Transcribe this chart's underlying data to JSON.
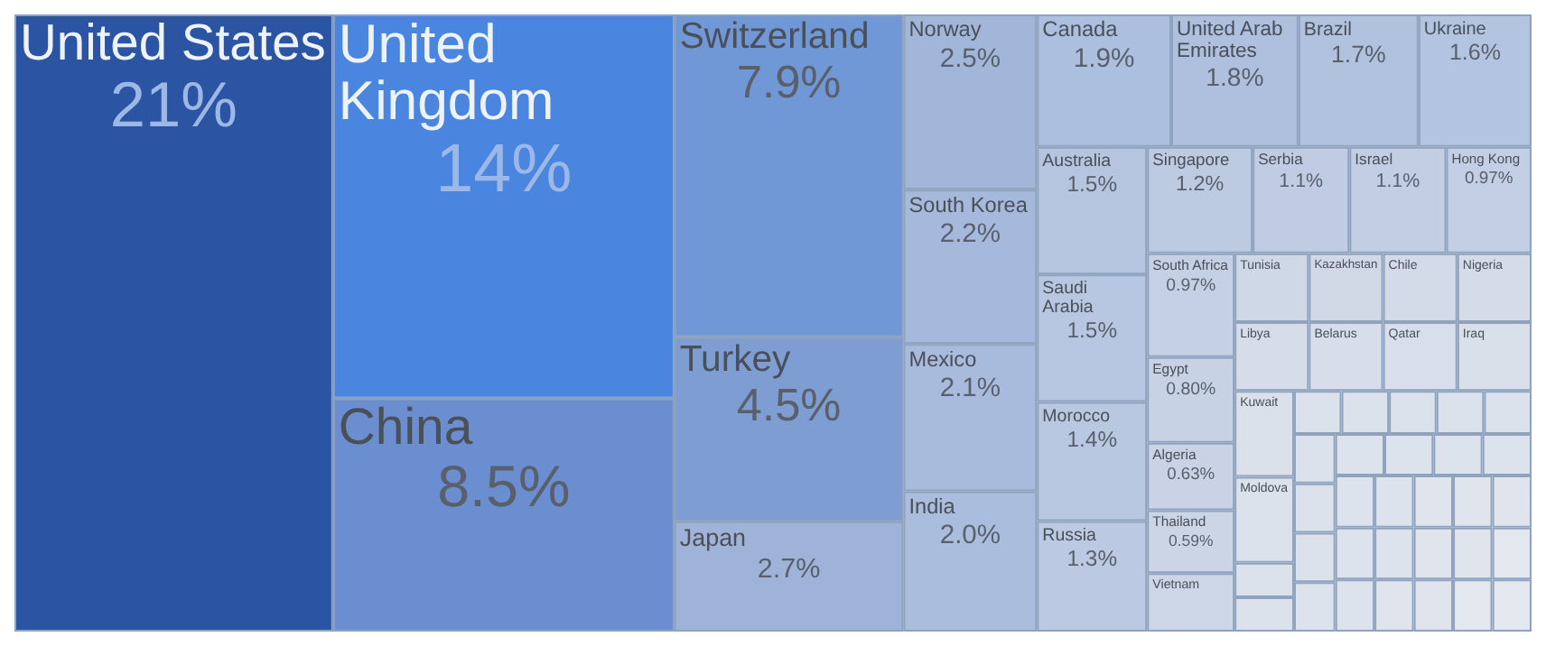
{
  "chart_data": {
    "type": "other",
    "categories": [
      "United States",
      "United Kingdom",
      "China",
      "Switzerland",
      "Turkey",
      "Japan",
      "Norway",
      "South Korea",
      "Mexico",
      "India",
      "Canada",
      "United Arab Emirates",
      "Brazil",
      "Ukraine",
      "Australia",
      "Saudi Arabia",
      "Morocco",
      "Russia",
      "Singapore",
      "Serbia",
      "Israel",
      "Hong Kong",
      "South Africa",
      "Egypt",
      "Algeria",
      "Thailand",
      "Vietnam",
      "Tunisia",
      "Kazakhstan",
      "Chile",
      "Nigeria",
      "Libya",
      "Belarus",
      "Qatar",
      "Iraq",
      "Kuwait",
      "Moldova",
      null,
      null,
      null,
      null,
      null,
      null,
      null,
      null,
      null,
      null,
      null,
      null,
      null,
      null,
      null,
      null,
      null,
      null,
      null,
      null,
      null,
      null,
      null,
      null,
      null,
      null,
      null,
      null,
      null,
      null
    ],
    "values": [
      21,
      14,
      8.5,
      7.9,
      4.5,
      2.7,
      2.5,
      2.2,
      2.1,
      2.0,
      1.9,
      1.8,
      1.7,
      1.6,
      1.5,
      1.5,
      1.4,
      1.3,
      1.2,
      1.1,
      1.1,
      0.97,
      0.97,
      0.8,
      0.63,
      0.59,
      null,
      null,
      null,
      null,
      null,
      null,
      null,
      null,
      null,
      null,
      null,
      null,
      null,
      null,
      null,
      null,
      null,
      null,
      null,
      null,
      null,
      null,
      null,
      null,
      null,
      null,
      null,
      null,
      null,
      null,
      null,
      null,
      null,
      null,
      null,
      null,
      null,
      null,
      null,
      null,
      null
    ],
    "value_labels": [
      "21%",
      "14%",
      "8.5%",
      "7.9%",
      "4.5%",
      "2.7%",
      "2.5%",
      "2.2%",
      "2.1%",
      "2.0%",
      "1.9%",
      "1.8%",
      "1.7%",
      "1.6%",
      "1.5%",
      "1.5%",
      "1.4%",
      "1.3%",
      "1.2%",
      "1.1%",
      "1.1%",
      "0.97%",
      "0.97%",
      "0.80%",
      "0.63%",
      "0.59%",
      null,
      null,
      null,
      null,
      null,
      null,
      null,
      null,
      null,
      null,
      null,
      null,
      null,
      null,
      null,
      null,
      null,
      null,
      null,
      null,
      null,
      null,
      null,
      null,
      null,
      null,
      null,
      null,
      null,
      null,
      null,
      null,
      null,
      null,
      null,
      null,
      null,
      null,
      null,
      null,
      null
    ],
    "colors": [
      "#2b54a3",
      "#4a86e0",
      "#6a8ecf",
      "#7098d6",
      "#7e9dd2",
      "#9fb3d9",
      "#a2b6da",
      "#a6b9dc",
      "#a8bbdc",
      "#abbddd",
      "#adbfde",
      "#afc0de",
      "#b1c2df",
      "#b3c4e0",
      "#b5c5e0",
      "#b7c7e1",
      "#b9c8e1",
      "#bbcae2",
      "#bdcbe2",
      "#bfcce3",
      "#c1cee3",
      "#c3cfe4",
      "#c5d0e4",
      "#c7d2e5",
      "#c9d3e5",
      "#cbd5e6",
      "#cdd6e6",
      "#cfd8e7",
      "#d1d9e7",
      "#d3dae8",
      "#d5dce8",
      "#d6dde9",
      "#d7dee9",
      "#d8dfea",
      "#d9e0ea",
      "#dae1eb",
      "#dbe2eb",
      "#dce2eb",
      "#dce2eb",
      "#dce2eb",
      "#dce2eb",
      "#dce2eb",
      "#dce2eb",
      "#dce2eb",
      "#dce2eb",
      "#dce2eb",
      "#dce2eb",
      "#dde3ec",
      "#dde3ec",
      "#dde3ec",
      "#dde3ec",
      "#dde3ec",
      "#dde3ec",
      "#dde3ec",
      "#dde3ec",
      "#dde3ec",
      "#dde3ec",
      "#e0e5ed",
      "#e0e5ed",
      "#e0e5ed",
      "#e0e5ed",
      "#e0e5ed",
      "#e0e5ed",
      "#e0e5ed",
      "#e3e7ee",
      "#e3e7ee",
      "#e3e7ee"
    ]
  }
}
